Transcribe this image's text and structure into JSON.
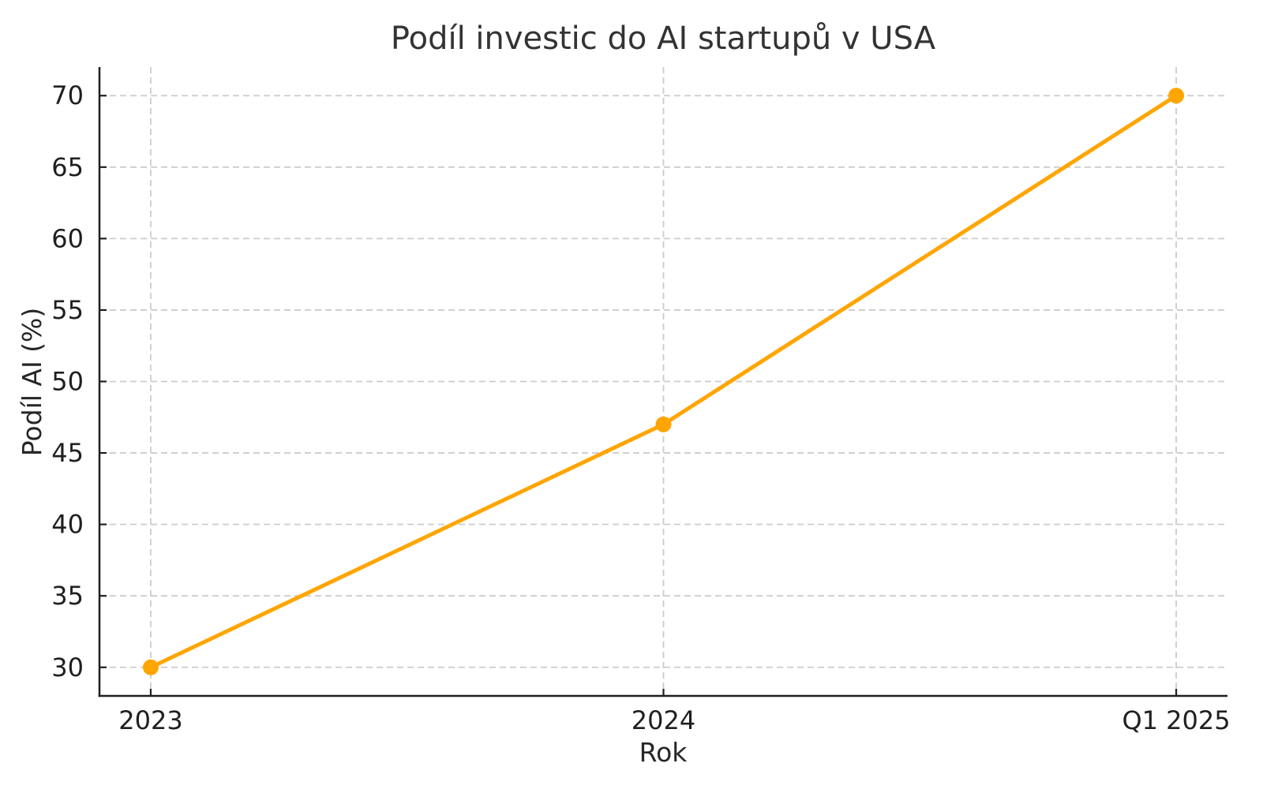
{
  "page": {
    "background_color": "#ffffff"
  },
  "chart_data": {
    "type": "line",
    "title": "Podíl investic do AI startupů v USA",
    "xlabel": "Rok",
    "ylabel": "Podíl AI (%)",
    "categories": [
      "2023",
      "2024",
      "Q1 2025"
    ],
    "series": [
      {
        "name": "Podíl AI",
        "values": [
          30,
          47,
          70
        ],
        "color": "#FFA500",
        "marker": "circle"
      }
    ],
    "yticks": [
      30,
      35,
      40,
      45,
      50,
      55,
      60,
      65,
      70
    ],
    "ylim": [
      28,
      72
    ],
    "xlim_pad_fraction": 0.05,
    "grid": "both",
    "grid_color": "#cccccc",
    "grid_style": "dashed",
    "axis_color": "#1f1f1f",
    "tick_direction": "in",
    "legend_position": "none"
  }
}
